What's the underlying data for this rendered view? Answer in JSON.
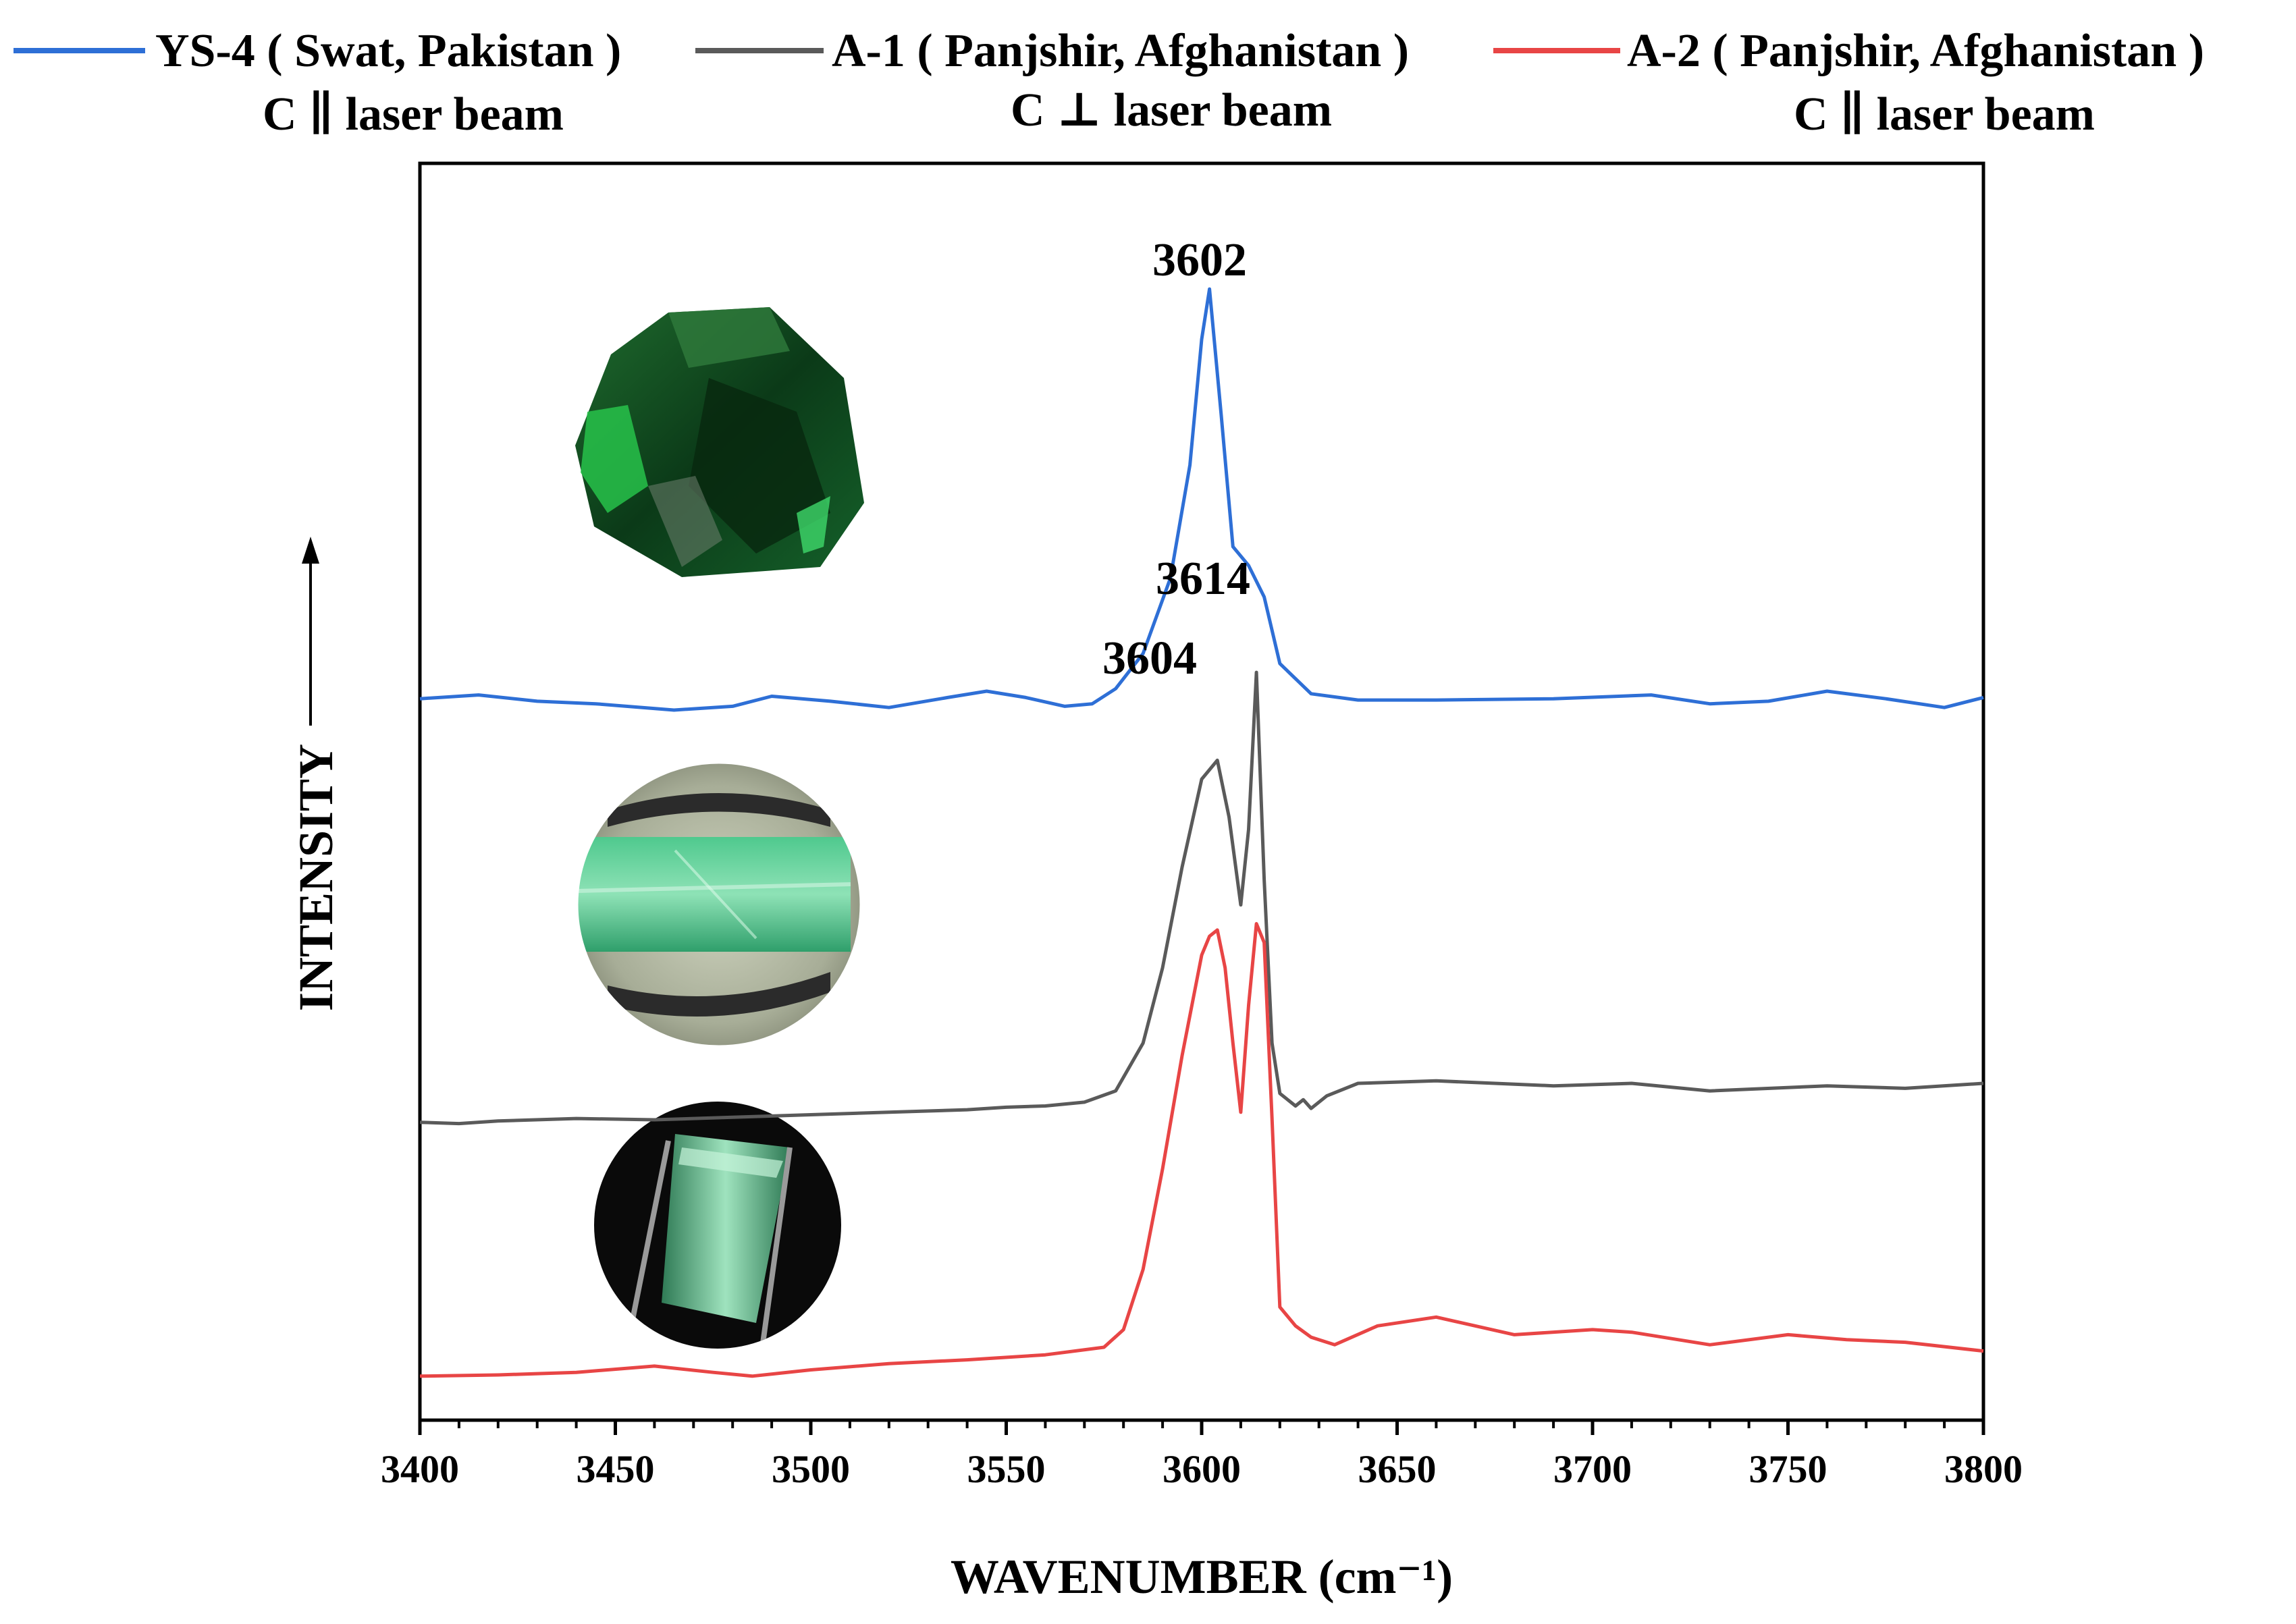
{
  "chart_data": {
    "type": "line",
    "xlabel": "WAVENUMBER (cm⁻¹)",
    "ylabel": "INTENSITY",
    "xlim": [
      3400,
      3800
    ],
    "ylim": [
      0,
      1
    ],
    "xticks": [
      3400,
      3450,
      3500,
      3550,
      3600,
      3650,
      3700,
      3750,
      3800
    ],
    "grid": false,
    "legend_position": "top",
    "series": [
      {
        "name": "YS-4 ( Swat, Pakistan )",
        "orientation": "C ∥ laser beam",
        "color": "#2e6fd6",
        "x": [
          3400,
          3415,
          3430,
          3445,
          3465,
          3480,
          3490,
          3505,
          3520,
          3535,
          3545,
          3555,
          3565,
          3572,
          3578,
          3585,
          3592,
          3597,
          3600,
          3602,
          3605,
          3608,
          3612,
          3616,
          3620,
          3628,
          3640,
          3660,
          3690,
          3715,
          3730,
          3745,
          3760,
          3775,
          3790,
          3800
        ],
        "y": [
          0.574,
          0.577,
          0.572,
          0.57,
          0.565,
          0.568,
          0.576,
          0.572,
          0.567,
          0.575,
          0.58,
          0.575,
          0.568,
          0.57,
          0.582,
          0.61,
          0.67,
          0.76,
          0.86,
          0.9,
          0.8,
          0.695,
          0.68,
          0.655,
          0.602,
          0.578,
          0.573,
          0.573,
          0.574,
          0.577,
          0.57,
          0.572,
          0.58,
          0.574,
          0.567,
          0.575
        ],
        "peak_label": "3602",
        "peak_x": 3602
      },
      {
        "name": "A-1 ( Panjshir, Afghanistan )",
        "orientation": "C ⊥ laser beam",
        "color": "#5a5a5a",
        "x": [
          3400,
          3410,
          3420,
          3440,
          3460,
          3480,
          3500,
          3520,
          3540,
          3550,
          3560,
          3570,
          3578,
          3585,
          3590,
          3595,
          3600,
          3604,
          3607,
          3610,
          3612,
          3614,
          3616,
          3618,
          3620,
          3624,
          3626,
          3628,
          3632,
          3640,
          3660,
          3690,
          3710,
          3730,
          3760,
          3780,
          3800
        ],
        "y": [
          0.237,
          0.236,
          0.238,
          0.24,
          0.239,
          0.241,
          0.243,
          0.245,
          0.247,
          0.249,
          0.25,
          0.253,
          0.262,
          0.3,
          0.36,
          0.44,
          0.51,
          0.525,
          0.48,
          0.41,
          0.47,
          0.595,
          0.43,
          0.3,
          0.26,
          0.25,
          0.255,
          0.248,
          0.258,
          0.268,
          0.27,
          0.266,
          0.268,
          0.262,
          0.266,
          0.264,
          0.268
        ],
        "peak_labels": [
          {
            "label": "3604",
            "x": 3604
          },
          {
            "label": "3614",
            "x": 3614
          }
        ]
      },
      {
        "name": "A-2 ( Panjshir, Afghanistan )",
        "orientation": "C ∥ laser beam",
        "color": "#e84545",
        "x": [
          3400,
          3420,
          3440,
          3460,
          3475,
          3485,
          3500,
          3520,
          3540,
          3560,
          3575,
          3580,
          3585,
          3590,
          3595,
          3600,
          3602,
          3604,
          3606,
          3608,
          3610,
          3612,
          3614,
          3616,
          3618,
          3620,
          3624,
          3628,
          3634,
          3645,
          3660,
          3680,
          3700,
          3710,
          3730,
          3750,
          3765,
          3780,
          3800
        ],
        "y": [
          0.035,
          0.036,
          0.038,
          0.043,
          0.038,
          0.035,
          0.04,
          0.045,
          0.048,
          0.052,
          0.058,
          0.072,
          0.12,
          0.2,
          0.29,
          0.37,
          0.385,
          0.39,
          0.36,
          0.3,
          0.245,
          0.33,
          0.395,
          0.38,
          0.24,
          0.09,
          0.075,
          0.066,
          0.06,
          0.075,
          0.082,
          0.068,
          0.072,
          0.07,
          0.06,
          0.068,
          0.064,
          0.062,
          0.055
        ]
      }
    ],
    "images": [
      {
        "name": "emerald-crystal-ys4-photo",
        "shape": "irregular"
      },
      {
        "name": "emerald-crystal-a1-photo",
        "shape": "circle"
      },
      {
        "name": "emerald-crystal-a2-photo",
        "shape": "circle"
      }
    ]
  }
}
